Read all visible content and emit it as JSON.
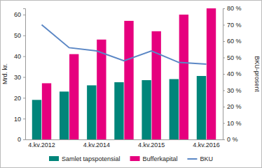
{
  "chart_data": {
    "type": "bar",
    "categories": [
      "4.kv.2012",
      null,
      "4.kv.2014",
      null,
      "4.kv.2015",
      null,
      "4.kv.2016"
    ],
    "y_label": "Mrd. kr.",
    "y2_label": "BKU-prosent",
    "ylim": [
      0,
      63
    ],
    "yticks": [
      0,
      10,
      20,
      30,
      40,
      50,
      60
    ],
    "y2lim": [
      0,
      80
    ],
    "y2ticks": [
      {
        "value": 0,
        "label": "0 %"
      },
      {
        "value": 10,
        "label": "10 %"
      },
      {
        "value": 20,
        "label": "20 %"
      },
      {
        "value": 30,
        "label": "30 %"
      },
      {
        "value": 40,
        "label": "40 %"
      },
      {
        "value": 50,
        "label": "50 %"
      },
      {
        "value": 60,
        "label": "60 %"
      },
      {
        "value": 70,
        "label": "70 %"
      },
      {
        "value": 80,
        "label": "80 %"
      }
    ],
    "grid": false,
    "legend": "bottom",
    "series": [
      {
        "name": "Samlet tapspotensial",
        "type": "bar",
        "color": "#00857a",
        "values": [
          19,
          23,
          26,
          27.5,
          28.5,
          29,
          30.5
        ]
      },
      {
        "name": "Bufferkapital",
        "type": "bar",
        "color": "#e6007e",
        "values": [
          27,
          41,
          48,
          57,
          52,
          60,
          63
        ]
      },
      {
        "name": "BKU",
        "type": "line",
        "axis": "y2",
        "color": "#5b87c5",
        "marker": "none",
        "values": [
          70,
          56,
          54,
          48,
          54,
          47,
          46
        ]
      }
    ]
  }
}
